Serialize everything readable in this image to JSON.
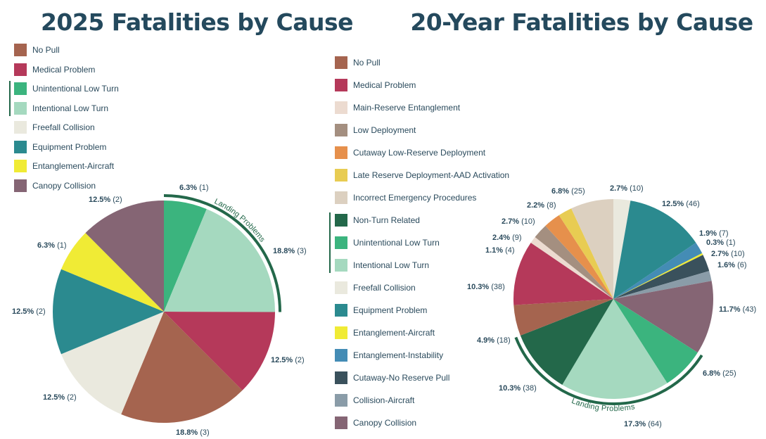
{
  "chart_data": [
    {
      "type": "pie",
      "title": "2025 Fatalities by Cause",
      "group_annotation": "Landing Problems",
      "legend": [
        "No Pull",
        "Medical Problem",
        "Unintentional Low Turn",
        "Intentional Low Turn",
        "Freefall Collision",
        "Equipment Problem",
        "Entanglement-Aircraft",
        "Canopy Collision"
      ],
      "legend_grouped": [
        "Unintentional Low Turn",
        "Intentional Low Turn"
      ],
      "slices": [
        {
          "category": "Unintentional Low Turn",
          "percent": 6.3,
          "count": 1,
          "pct_label": "6.3%",
          "count_label": "(1)",
          "color": "#3bb47e"
        },
        {
          "category": "Intentional Low Turn",
          "percent": 18.8,
          "count": 3,
          "pct_label": "18.8%",
          "count_label": "(3)",
          "color": "#a5d9bf"
        },
        {
          "category": "Medical Problem",
          "percent": 12.5,
          "count": 2,
          "pct_label": "12.5%",
          "count_label": "(2)",
          "color": "#b5395a"
        },
        {
          "category": "No Pull",
          "percent": 18.8,
          "count": 3,
          "pct_label": "18.8%",
          "count_label": "(3)",
          "color": "#a5644f"
        },
        {
          "category": "Freefall Collision",
          "percent": 12.5,
          "count": 2,
          "pct_label": "12.5%",
          "count_label": "(2)",
          "color": "#eae9de"
        },
        {
          "category": "Equipment Problem",
          "percent": 12.5,
          "count": 2,
          "pct_label": "12.5%",
          "count_label": "(2)",
          "color": "#2b8a8f"
        },
        {
          "category": "Entanglement-Aircraft",
          "percent": 6.3,
          "count": 1,
          "pct_label": "6.3%",
          "count_label": "(1)",
          "color": "#f0eb35"
        },
        {
          "category": "Canopy Collision",
          "percent": 12.5,
          "count": 2,
          "pct_label": "12.5%",
          "count_label": "(2)",
          "color": "#856574"
        }
      ]
    },
    {
      "type": "pie",
      "title": "20-Year Fatalities by Cause",
      "group_annotation": "Landing Problems",
      "legend": [
        "No Pull",
        "Medical Problem",
        "Main-Reserve Entanglement",
        "Low Deployment",
        "Cutaway Low-Reserve Deployment",
        "Late Reserve Deployment-AAD Activation",
        "Incorrect Emergency Procedures",
        "Non-Turn Related",
        "Unintentional Low Turn",
        "Intentional Low Turn",
        "Freefall Collision",
        "Equipment Problem",
        "Entanglement-Aircraft",
        "Entanglement-Instability",
        "Cutaway-No Reserve Pull",
        "Collision-Aircraft",
        "Canopy Collision"
      ],
      "legend_grouped": [
        "Non-Turn Related",
        "Unintentional Low Turn",
        "Intentional Low Turn"
      ],
      "slices": [
        {
          "category": "Freefall Collision",
          "percent": 2.7,
          "count": 10,
          "pct_label": "2.7%",
          "count_label": "(10)",
          "color": "#eae9de"
        },
        {
          "category": "Equipment Problem",
          "percent": 12.5,
          "count": 46,
          "pct_label": "12.5%",
          "count_label": "(46)",
          "color": "#2b8a8f"
        },
        {
          "category": "Entanglement-Instability",
          "percent": 1.9,
          "count": 7,
          "pct_label": "1.9%",
          "count_label": "(7)",
          "color": "#448cb5"
        },
        {
          "category": "Entanglement-Aircraft",
          "percent": 0.3,
          "count": 1,
          "pct_label": "0.3%",
          "count_label": "(1)",
          "color": "#f0eb35"
        },
        {
          "category": "Cutaway-No Reserve Pull",
          "percent": 2.7,
          "count": 10,
          "pct_label": "2.7%",
          "count_label": "(10)",
          "color": "#3a515c"
        },
        {
          "category": "Collision-Aircraft",
          "percent": 1.6,
          "count": 6,
          "pct_label": "1.6%",
          "count_label": "(6)",
          "color": "#8a9ca8"
        },
        {
          "category": "Canopy Collision",
          "percent": 11.7,
          "count": 43,
          "pct_label": "11.7%",
          "count_label": "(43)",
          "color": "#856574"
        },
        {
          "category": "Unintentional Low Turn",
          "percent": 6.8,
          "count": 25,
          "pct_label": "6.8%",
          "count_label": "(25)",
          "color": "#3bb47e"
        },
        {
          "category": "Intentional Low Turn",
          "percent": 17.3,
          "count": 64,
          "pct_label": "17.3%",
          "count_label": "(64)",
          "color": "#a5d9bf"
        },
        {
          "category": "Non-Turn Related",
          "percent": 10.3,
          "count": 38,
          "pct_label": "10.3%",
          "count_label": "(38)",
          "color": "#23684a"
        },
        {
          "category": "No Pull",
          "percent": 4.9,
          "count": 18,
          "pct_label": "4.9%",
          "count_label": "(18)",
          "color": "#a5644f"
        },
        {
          "category": "Medical Problem",
          "percent": 10.3,
          "count": 38,
          "pct_label": "10.3%",
          "count_label": "(38)",
          "color": "#b5395a"
        },
        {
          "category": "Main-Reserve Entanglement",
          "percent": 1.1,
          "count": 4,
          "pct_label": "1.1%",
          "count_label": "(4)",
          "color": "#ecdbd0"
        },
        {
          "category": "Low Deployment",
          "percent": 2.4,
          "count": 9,
          "pct_label": "2.4%",
          "count_label": "(9)",
          "color": "#a48f80"
        },
        {
          "category": "Cutaway Low-Reserve Deployment",
          "percent": 2.7,
          "count": 10,
          "pct_label": "2.7%",
          "count_label": "(10)",
          "color": "#e6904c"
        },
        {
          "category": "Late Reserve Deployment-AAD Activation",
          "percent": 2.2,
          "count": 8,
          "pct_label": "2.2%",
          "count_label": "(8)",
          "color": "#e8cc52"
        },
        {
          "category": "Incorrect Emergency Procedures",
          "percent": 6.8,
          "count": 25,
          "pct_label": "6.8%",
          "count_label": "(25)",
          "color": "#dcd0c0"
        }
      ]
    }
  ]
}
